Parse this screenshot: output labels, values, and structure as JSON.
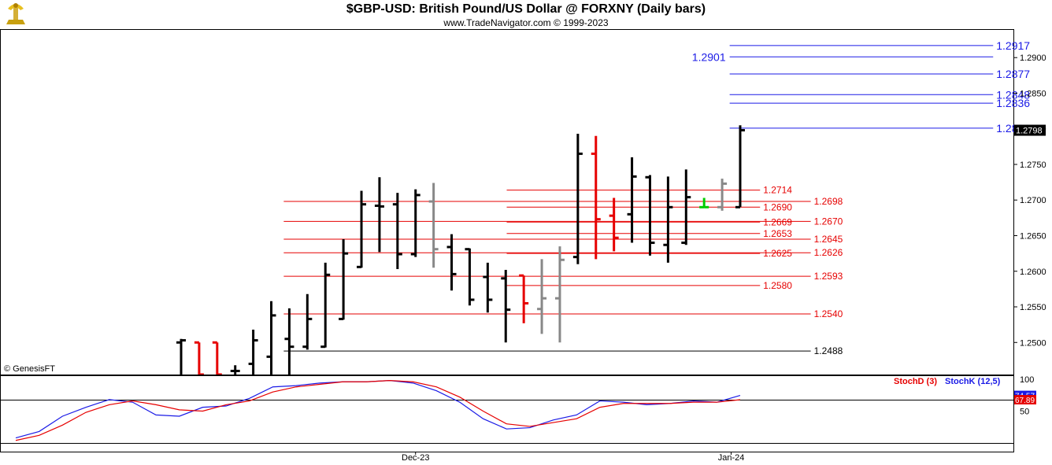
{
  "title": "$GBP-USD:  British Pound/US Dollar @ FORXNY  (Daily bars)",
  "subtitle": "www.TradeNavigator.com © 1999-2023",
  "logo_icon": "gold-bull-logo-icon",
  "credit": "© GenesisFT",
  "colors": {
    "blue": "#1a1ae6",
    "red": "#e60000",
    "black": "#000000",
    "gray": "#888888",
    "green": "#00cc00"
  },
  "chart_data": [
    {
      "type": "bar",
      "name": "price",
      "ylim": [
        1.2455,
        1.294
      ],
      "yticks": [
        "1.2500",
        "1.2550",
        "1.2600",
        "1.2650",
        "1.2700",
        "1.2750",
        "1.2800",
        "1.2850",
        "1.2900"
      ],
      "last_price_label": "1.2798",
      "xticks": [
        "Dec-23",
        "Jan-24"
      ],
      "bars": [
        {
          "o": 1.25,
          "h": 1.2505,
          "l": 1.2455,
          "c": 1.2503,
          "color": "black"
        },
        {
          "o": 1.25,
          "h": 1.25,
          "l": 1.2455,
          "c": 1.2455,
          "color": "red"
        },
        {
          "o": 1.25,
          "h": 1.25,
          "l": 1.2455,
          "c": 1.2455,
          "color": "red"
        },
        {
          "o": 1.246,
          "h": 1.2468,
          "l": 1.2455,
          "c": 1.246,
          "color": "black"
        },
        {
          "o": 1.247,
          "h": 1.2518,
          "l": 1.2455,
          "c": 1.2503,
          "color": "black"
        },
        {
          "o": 1.248,
          "h": 1.2558,
          "l": 1.2455,
          "c": 1.2538,
          "color": "black"
        },
        {
          "o": 1.2505,
          "h": 1.2548,
          "l": 1.2455,
          "c": 1.2494,
          "color": "black"
        },
        {
          "o": 1.2494,
          "h": 1.2568,
          "l": 1.249,
          "c": 1.2533,
          "color": "black"
        },
        {
          "o": 1.2494,
          "h": 1.2612,
          "l": 1.2493,
          "c": 1.2595,
          "color": "black"
        },
        {
          "o": 1.2533,
          "h": 1.2645,
          "l": 1.2532,
          "c": 1.2625,
          "color": "black"
        },
        {
          "o": 1.2606,
          "h": 1.2713,
          "l": 1.2605,
          "c": 1.2694,
          "color": "black"
        },
        {
          "o": 1.2692,
          "h": 1.2732,
          "l": 1.2627,
          "c": 1.2691,
          "color": "black"
        },
        {
          "o": 1.2694,
          "h": 1.271,
          "l": 1.2603,
          "c": 1.2624,
          "color": "black"
        },
        {
          "o": 1.2624,
          "h": 1.2715,
          "l": 1.262,
          "c": 1.2707,
          "color": "black"
        },
        {
          "o": 1.2698,
          "h": 1.2724,
          "l": 1.2605,
          "c": 1.2631,
          "color": "gray"
        },
        {
          "o": 1.2634,
          "h": 1.2652,
          "l": 1.2573,
          "c": 1.2596,
          "color": "black"
        },
        {
          "o": 1.2631,
          "h": 1.2632,
          "l": 1.2552,
          "c": 1.256,
          "color": "black"
        },
        {
          "o": 1.2592,
          "h": 1.2612,
          "l": 1.2542,
          "c": 1.256,
          "color": "black"
        },
        {
          "o": 1.259,
          "h": 1.2602,
          "l": 1.25,
          "c": 1.2546,
          "color": "black"
        },
        {
          "o": 1.2594,
          "h": 1.2594,
          "l": 1.2527,
          "c": 1.2555,
          "color": "red"
        },
        {
          "o": 1.2547,
          "h": 1.2617,
          "l": 1.2512,
          "c": 1.2562,
          "color": "gray"
        },
        {
          "o": 1.2562,
          "h": 1.2635,
          "l": 1.25,
          "c": 1.2616,
          "color": "gray"
        },
        {
          "o": 1.262,
          "h": 1.2793,
          "l": 1.261,
          "c": 1.2765,
          "color": "black"
        },
        {
          "o": 1.2765,
          "h": 1.279,
          "l": 1.2617,
          "c": 1.2673,
          "color": "red"
        },
        {
          "o": 1.2678,
          "h": 1.2703,
          "l": 1.2628,
          "c": 1.2647,
          "color": "red"
        },
        {
          "o": 1.268,
          "h": 1.276,
          "l": 1.264,
          "c": 1.2733,
          "color": "black"
        },
        {
          "o": 1.2732,
          "h": 1.2735,
          "l": 1.2622,
          "c": 1.264,
          "color": "black"
        },
        {
          "o": 1.2637,
          "h": 1.2733,
          "l": 1.2612,
          "c": 1.269,
          "color": "black"
        },
        {
          "o": 1.264,
          "h": 1.2743,
          "l": 1.2637,
          "c": 1.2704,
          "color": "black"
        },
        {
          "o": 1.269,
          "h": 1.2703,
          "l": 1.269,
          "c": 1.269,
          "color": "green"
        },
        {
          "o": 1.269,
          "h": 1.273,
          "l": 1.2685,
          "c": 1.2723,
          "color": "gray"
        },
        {
          "o": 1.269,
          "h": 1.2805,
          "l": 1.269,
          "c": 1.2798,
          "color": "black"
        }
      ],
      "levels": [
        {
          "value": 1.2917,
          "label": "1.2917",
          "color": "blue",
          "from": 0.72,
          "to": 0.98,
          "label_at": "right"
        },
        {
          "value": 1.2901,
          "label": "1.2901",
          "color": "blue",
          "from": 0.72,
          "to": 0.98,
          "label_at": "left"
        },
        {
          "value": 1.2877,
          "label": "1.2877",
          "color": "blue",
          "from": 0.72,
          "to": 0.98,
          "label_at": "right"
        },
        {
          "value": 1.2848,
          "label": "1.2848",
          "color": "blue",
          "from": 0.72,
          "to": 0.98,
          "label_at": "right"
        },
        {
          "value": 1.2836,
          "label": "1.2836",
          "color": "blue",
          "from": 0.72,
          "to": 0.98,
          "label_at": "right"
        },
        {
          "value": 1.2801,
          "label": "1.2801",
          "color": "blue",
          "from": 0.72,
          "to": 0.98,
          "label_at": "right"
        },
        {
          "value": 1.2714,
          "label": "1.2714",
          "color": "red",
          "from": 0.5,
          "to": 0.75,
          "label_at": "right"
        },
        {
          "value": 1.2698,
          "label": "1.2698",
          "color": "red",
          "from": 0.28,
          "to": 0.8,
          "label_at": "right"
        },
        {
          "value": 1.269,
          "label": "1.2690",
          "color": "red",
          "from": 0.5,
          "to": 0.75,
          "label_at": "right"
        },
        {
          "value": 1.267,
          "label": "1.2670",
          "color": "red",
          "from": 0.28,
          "to": 0.8,
          "label_at": "right"
        },
        {
          "value": 1.2669,
          "label": "1.2669",
          "color": "red",
          "from": 0.5,
          "to": 0.75,
          "label_at": "right"
        },
        {
          "value": 1.2653,
          "label": "1.2653",
          "color": "red",
          "from": 0.5,
          "to": 0.75,
          "label_at": "right"
        },
        {
          "value": 1.2645,
          "label": "1.2645",
          "color": "red",
          "from": 0.28,
          "to": 0.8,
          "label_at": "right"
        },
        {
          "value": 1.2626,
          "label": "1.2626",
          "color": "red",
          "from": 0.28,
          "to": 0.8,
          "label_at": "right"
        },
        {
          "value": 1.2625,
          "label": "1.2625",
          "color": "red",
          "from": 0.5,
          "to": 0.75,
          "label_at": "right"
        },
        {
          "value": 1.2593,
          "label": "1.2593",
          "color": "red",
          "from": 0.28,
          "to": 0.8,
          "label_at": "right"
        },
        {
          "value": 1.258,
          "label": "1.2580",
          "color": "red",
          "from": 0.5,
          "to": 0.75,
          "label_at": "right"
        },
        {
          "value": 1.254,
          "label": "1.2540",
          "color": "red",
          "from": 0.28,
          "to": 0.8,
          "label_at": "right"
        },
        {
          "value": 1.2488,
          "label": "1.2488",
          "color": "black",
          "from": 0.28,
          "to": 0.8,
          "label_at": "right"
        }
      ]
    },
    {
      "type": "line",
      "name": "stochastic",
      "ylim": [
        0,
        100
      ],
      "yticks": [
        "100",
        "50"
      ],
      "legend": [
        "StochD (3)",
        "StochK (12,5)"
      ],
      "last_labels": {
        "k": "74.57",
        "d": "67.89"
      },
      "series": [
        {
          "name": "StochK (12,5)",
          "color": "blue",
          "values": [
            8,
            18,
            42,
            56,
            68,
            64,
            44,
            42,
            56,
            58,
            70,
            88,
            90,
            94,
            96,
            96,
            98,
            94,
            82,
            64,
            38,
            22,
            24,
            36,
            44,
            66,
            64,
            60,
            62,
            66,
            64,
            74.57
          ]
        },
        {
          "name": "StochD (3)",
          "color": "red",
          "values": [
            4,
            12,
            28,
            48,
            60,
            66,
            60,
            52,
            50,
            60,
            66,
            80,
            88,
            92,
            96,
            96,
            98,
            96,
            88,
            72,
            50,
            30,
            26,
            32,
            38,
            56,
            62,
            62,
            62,
            64,
            64,
            67.89
          ]
        }
      ]
    }
  ]
}
